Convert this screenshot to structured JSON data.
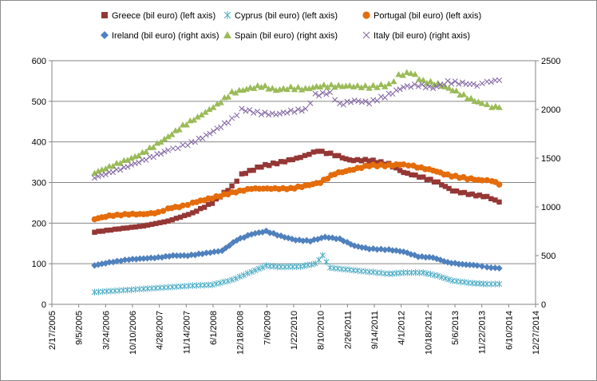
{
  "chart_data": {
    "type": "scatter",
    "title": "",
    "x_axis": {
      "tick_labels": [
        "2/17/2005",
        "9/5/2005",
        "3/24/2006",
        "10/10/2006",
        "4/28/2007",
        "11/14/2007",
        "6/1/2008",
        "12/18/2008",
        "7/6/2009",
        "1/22/2010",
        "8/10/2010",
        "2/26/2011",
        "9/14/2011",
        "4/1/2012",
        "10/18/2012",
        "5/6/2013",
        "11/22/2013",
        "6/10/2014",
        "12/27/2014"
      ],
      "min_year": 2005.13,
      "max_year": 2014.99,
      "major_unit_days": 200
    },
    "left_axis": {
      "min": 0,
      "max": 600,
      "major_unit": 100,
      "tick_labels": [
        "0",
        "100",
        "200",
        "300",
        "400",
        "500",
        "600"
      ]
    },
    "right_axis": {
      "min": 0,
      "max": 2500,
      "major_unit": 500,
      "tick_labels": [
        "0",
        "500",
        "1000",
        "1500",
        "2000",
        "2500"
      ]
    },
    "gridlines": "horizontal",
    "legend_position": "top",
    "series": [
      {
        "name": "Greece (bil euro) (left axis)",
        "axis": "left",
        "marker": "square",
        "color": "#953735",
        "points": [
          [
            2006.0,
            178
          ],
          [
            2006.5,
            186
          ],
          [
            2007.0,
            193
          ],
          [
            2007.5,
            205
          ],
          [
            2008.0,
            225
          ],
          [
            2008.4,
            250
          ],
          [
            2008.8,
            290
          ],
          [
            2009.0,
            320
          ],
          [
            2009.4,
            340
          ],
          [
            2009.8,
            350
          ],
          [
            2010.2,
            362
          ],
          [
            2010.55,
            378
          ],
          [
            2010.9,
            368
          ],
          [
            2011.2,
            355
          ],
          [
            2011.6,
            355
          ],
          [
            2012.0,
            345
          ],
          [
            2012.3,
            325
          ],
          [
            2012.7,
            312
          ],
          [
            2013.0,
            300
          ],
          [
            2013.3,
            280
          ],
          [
            2013.7,
            270
          ],
          [
            2014.0,
            265
          ],
          [
            2014.25,
            252
          ]
        ]
      },
      {
        "name": "Cyprus (bil euro) (left axis)",
        "axis": "left",
        "marker": "asterisk",
        "color": "#4bacc6",
        "points": [
          [
            2006.0,
            30
          ],
          [
            2006.5,
            34
          ],
          [
            2007.0,
            38
          ],
          [
            2007.5,
            42
          ],
          [
            2008.0,
            46
          ],
          [
            2008.4,
            48
          ],
          [
            2008.8,
            60
          ],
          [
            2009.2,
            80
          ],
          [
            2009.5,
            95
          ],
          [
            2009.8,
            92
          ],
          [
            2010.2,
            93
          ],
          [
            2010.5,
            100
          ],
          [
            2010.65,
            120
          ],
          [
            2010.8,
            90
          ],
          [
            2011.2,
            85
          ],
          [
            2011.6,
            80
          ],
          [
            2012.0,
            75
          ],
          [
            2012.3,
            78
          ],
          [
            2012.7,
            78
          ],
          [
            2013.0,
            70
          ],
          [
            2013.3,
            58
          ],
          [
            2013.7,
            52
          ],
          [
            2014.0,
            50
          ],
          [
            2014.25,
            50
          ]
        ]
      },
      {
        "name": "Portugal (bil euro) (left axis)",
        "axis": "left",
        "marker": "circle",
        "color": "#e46c0a",
        "points": [
          [
            2006.0,
            210
          ],
          [
            2006.3,
            218
          ],
          [
            2006.7,
            222
          ],
          [
            2007.0,
            222
          ],
          [
            2007.3,
            226
          ],
          [
            2007.5,
            236
          ],
          [
            2007.8,
            242
          ],
          [
            2008.0,
            250
          ],
          [
            2008.4,
            262
          ],
          [
            2008.8,
            275
          ],
          [
            2009.2,
            285
          ],
          [
            2009.6,
            285
          ],
          [
            2010.0,
            285
          ],
          [
            2010.3,
            292
          ],
          [
            2010.6,
            300
          ],
          [
            2010.9,
            322
          ],
          [
            2011.2,
            330
          ],
          [
            2011.6,
            342
          ],
          [
            2012.0,
            342
          ],
          [
            2012.3,
            345
          ],
          [
            2012.5,
            340
          ],
          [
            2012.9,
            330
          ],
          [
            2013.2,
            318
          ],
          [
            2013.6,
            310
          ],
          [
            2013.9,
            305
          ],
          [
            2014.1,
            305
          ],
          [
            2014.25,
            295
          ]
        ]
      },
      {
        "name": "Ireland (bil euro) (right axis)",
        "axis": "right",
        "marker": "diamond",
        "color": "#4f81bd",
        "points": [
          [
            2006.0,
            400
          ],
          [
            2006.3,
            430
          ],
          [
            2006.7,
            460
          ],
          [
            2007.0,
            470
          ],
          [
            2007.3,
            480
          ],
          [
            2007.6,
            500
          ],
          [
            2007.9,
            500
          ],
          [
            2008.2,
            520
          ],
          [
            2008.6,
            550
          ],
          [
            2008.9,
            660
          ],
          [
            2009.2,
            720
          ],
          [
            2009.5,
            750
          ],
          [
            2009.8,
            700
          ],
          [
            2010.1,
            660
          ],
          [
            2010.4,
            650
          ],
          [
            2010.7,
            690
          ],
          [
            2011.0,
            670
          ],
          [
            2011.3,
            600
          ],
          [
            2011.6,
            570
          ],
          [
            2012.0,
            560
          ],
          [
            2012.3,
            540
          ],
          [
            2012.6,
            490
          ],
          [
            2012.9,
            480
          ],
          [
            2013.2,
            430
          ],
          [
            2013.5,
            410
          ],
          [
            2013.8,
            400
          ],
          [
            2014.0,
            380
          ],
          [
            2014.25,
            370
          ]
        ]
      },
      {
        "name": "Spain (bil euro) (right axis)",
        "axis": "right",
        "marker": "triangle",
        "color": "#9bbb59",
        "points": [
          [
            2006.0,
            1350
          ],
          [
            2006.3,
            1410
          ],
          [
            2006.6,
            1470
          ],
          [
            2006.9,
            1530
          ],
          [
            2007.2,
            1620
          ],
          [
            2007.5,
            1720
          ],
          [
            2007.8,
            1830
          ],
          [
            2008.1,
            1920
          ],
          [
            2008.5,
            2050
          ],
          [
            2008.8,
            2170
          ],
          [
            2009.1,
            2210
          ],
          [
            2009.4,
            2240
          ],
          [
            2009.7,
            2200
          ],
          [
            2010.0,
            2220
          ],
          [
            2010.3,
            2210
          ],
          [
            2010.6,
            2240
          ],
          [
            2010.9,
            2240
          ],
          [
            2011.2,
            2240
          ],
          [
            2011.6,
            2230
          ],
          [
            2012.0,
            2250
          ],
          [
            2012.2,
            2350
          ],
          [
            2012.45,
            2380
          ],
          [
            2012.7,
            2290
          ],
          [
            2013.0,
            2260
          ],
          [
            2013.3,
            2200
          ],
          [
            2013.6,
            2120
          ],
          [
            2013.9,
            2060
          ],
          [
            2014.1,
            2030
          ],
          [
            2014.25,
            2020
          ]
        ]
      },
      {
        "name": "Italy (bil euro) (right axis)",
        "axis": "right",
        "marker": "cross",
        "color": "#8064a2",
        "points": [
          [
            2006.0,
            1300
          ],
          [
            2006.3,
            1350
          ],
          [
            2006.6,
            1400
          ],
          [
            2006.9,
            1460
          ],
          [
            2007.2,
            1520
          ],
          [
            2007.5,
            1580
          ],
          [
            2007.7,
            1610
          ],
          [
            2007.9,
            1640
          ],
          [
            2008.2,
            1710
          ],
          [
            2008.5,
            1800
          ],
          [
            2008.8,
            1900
          ],
          [
            2009.0,
            2000
          ],
          [
            2009.4,
            1960
          ],
          [
            2009.7,
            1950
          ],
          [
            2010.0,
            1980
          ],
          [
            2010.3,
            2000
          ],
          [
            2010.5,
            2150
          ],
          [
            2010.8,
            2170
          ],
          [
            2011.0,
            2050
          ],
          [
            2011.3,
            2090
          ],
          [
            2011.6,
            2070
          ],
          [
            2012.0,
            2150
          ],
          [
            2012.3,
            2230
          ],
          [
            2012.6,
            2250
          ],
          [
            2012.9,
            2220
          ],
          [
            2013.2,
            2280
          ],
          [
            2013.5,
            2270
          ],
          [
            2013.8,
            2250
          ],
          [
            2014.0,
            2280
          ],
          [
            2014.25,
            2300
          ]
        ]
      }
    ]
  }
}
